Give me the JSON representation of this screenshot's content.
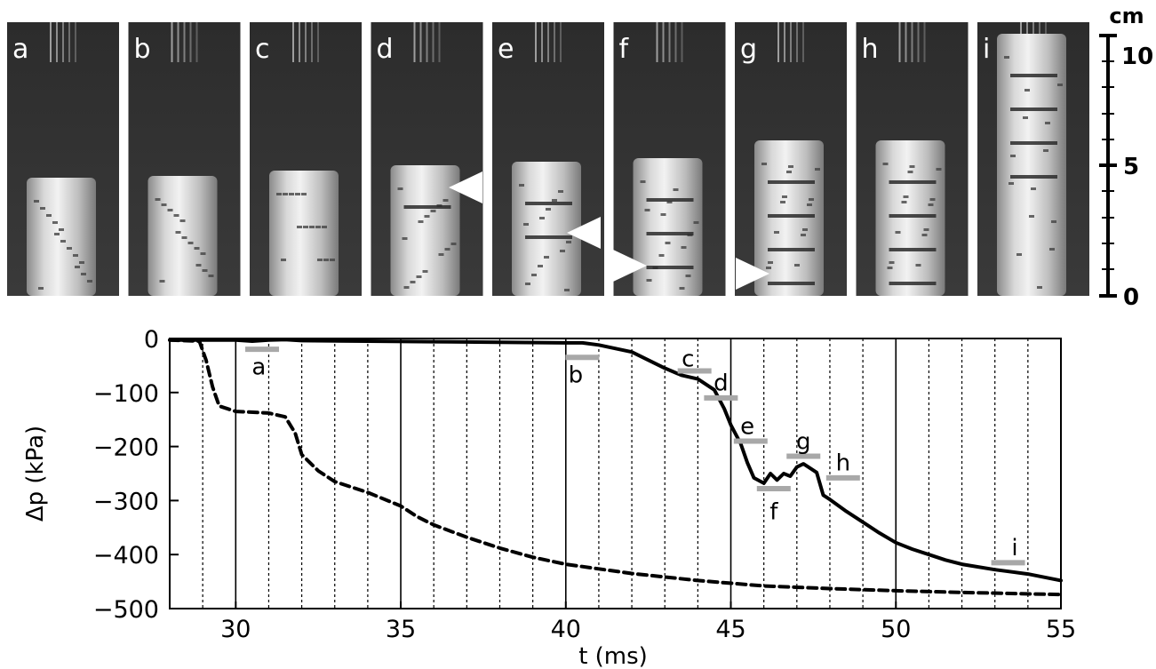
{
  "frames": {
    "labels": [
      "a",
      "b",
      "c",
      "d",
      "e",
      "f",
      "g",
      "h",
      "i"
    ],
    "arrow_frames": [
      "d",
      "e",
      "f",
      "g"
    ]
  },
  "scale_bar": {
    "unit": "cm",
    "ticks": [
      "0",
      "5",
      "10"
    ]
  },
  "chart_data": {
    "type": "line",
    "xlabel": "t (ms)",
    "ylabel": "Δp (kPa)",
    "xlim": [
      28,
      55
    ],
    "ylim": [
      -500,
      0
    ],
    "x_ticks": [
      30,
      35,
      40,
      45,
      50,
      55
    ],
    "y_ticks": [
      0,
      -100,
      -200,
      -300,
      -400,
      -500
    ],
    "grid": "vertical lines every 1 ms (dotted), solid every 5 ms",
    "series": [
      {
        "style": "solid",
        "color": "#000000",
        "points": [
          [
            28,
            -3
          ],
          [
            30,
            -3
          ],
          [
            30.5,
            -5
          ],
          [
            31,
            -3
          ],
          [
            31.5,
            -2
          ],
          [
            32,
            -4
          ],
          [
            34,
            -5
          ],
          [
            36,
            -6
          ],
          [
            38,
            -7
          ],
          [
            40,
            -8
          ],
          [
            40.5,
            -8
          ],
          [
            41,
            -12
          ],
          [
            42,
            -25
          ],
          [
            43,
            -55
          ],
          [
            43.5,
            -68
          ],
          [
            44,
            -75
          ],
          [
            44.5,
            -95
          ],
          [
            44.8,
            -130
          ],
          [
            45,
            -160
          ],
          [
            45.3,
            -195
          ],
          [
            45.5,
            -230
          ],
          [
            45.7,
            -258
          ],
          [
            46,
            -268
          ],
          [
            46.2,
            -250
          ],
          [
            46.4,
            -262
          ],
          [
            46.6,
            -250
          ],
          [
            46.8,
            -255
          ],
          [
            47,
            -238
          ],
          [
            47.2,
            -232
          ],
          [
            47.4,
            -240
          ],
          [
            47.6,
            -248
          ],
          [
            47.8,
            -290
          ],
          [
            48,
            -298
          ],
          [
            48.5,
            -320
          ],
          [
            49,
            -340
          ],
          [
            49.5,
            -360
          ],
          [
            50,
            -378
          ],
          [
            50.5,
            -390
          ],
          [
            51,
            -400
          ],
          [
            51.5,
            -410
          ],
          [
            52,
            -418
          ],
          [
            53,
            -428
          ],
          [
            54,
            -436
          ],
          [
            55,
            -448
          ]
        ]
      },
      {
        "style": "dashed",
        "color": "#000000",
        "points": [
          [
            28,
            -3
          ],
          [
            28.9,
            -5
          ],
          [
            29.1,
            -40
          ],
          [
            29.3,
            -90
          ],
          [
            29.5,
            -125
          ],
          [
            30,
            -135
          ],
          [
            31,
            -138
          ],
          [
            31.5,
            -145
          ],
          [
            31.8,
            -175
          ],
          [
            32,
            -215
          ],
          [
            32.5,
            -245
          ],
          [
            33,
            -265
          ],
          [
            34,
            -285
          ],
          [
            35,
            -310
          ],
          [
            35.5,
            -330
          ],
          [
            36,
            -345
          ],
          [
            37,
            -368
          ],
          [
            38,
            -388
          ],
          [
            39,
            -405
          ],
          [
            40,
            -418
          ],
          [
            42,
            -435
          ],
          [
            44,
            -448
          ],
          [
            46,
            -458
          ],
          [
            48,
            -463
          ],
          [
            50,
            -467
          ],
          [
            52,
            -470
          ],
          [
            55,
            -474
          ]
        ]
      }
    ],
    "annotations": [
      {
        "label": "a",
        "x": 30.8,
        "y": -20,
        "text_x": 30.7,
        "text_y": -50
      },
      {
        "label": "b",
        "x": 40.5,
        "y": -35,
        "text_x": 40.3,
        "text_y": -65
      },
      {
        "label": "c",
        "x": 43.9,
        "y": -60,
        "text_x": 43.7,
        "text_y": -35
      },
      {
        "label": "d",
        "x": 44.7,
        "y": -110,
        "text_x": 44.7,
        "text_y": -80
      },
      {
        "label": "e",
        "x": 45.6,
        "y": -190,
        "text_x": 45.5,
        "text_y": -160
      },
      {
        "label": "f",
        "x": 46.3,
        "y": -278,
        "text_x": 46.3,
        "text_y": -318
      },
      {
        "label": "g",
        "x": 47.2,
        "y": -218,
        "text_x": 47.2,
        "text_y": -188
      },
      {
        "label": "h",
        "x": 48.4,
        "y": -258,
        "text_x": 48.4,
        "text_y": -228
      },
      {
        "label": "i",
        "x": 53.4,
        "y": -415,
        "text_x": 53.6,
        "text_y": -385
      }
    ]
  }
}
